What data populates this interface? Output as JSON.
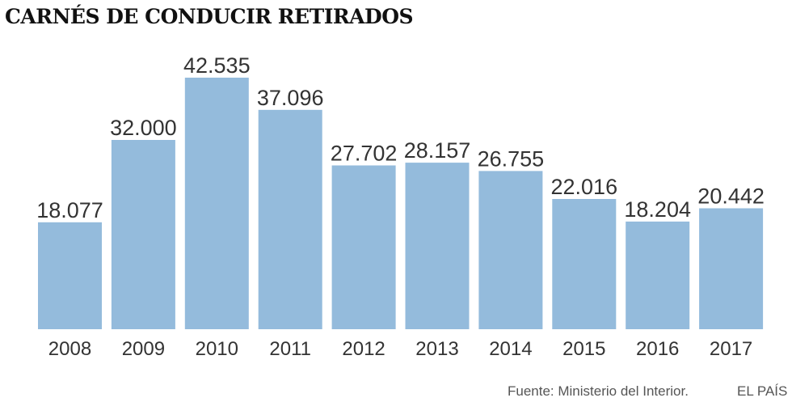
{
  "chart_data": {
    "type": "bar",
    "title": "CARNÉS DE CONDUCIR RETIRADOS",
    "categories": [
      "2008",
      "2009",
      "2010",
      "2011",
      "2012",
      "2013",
      "2014",
      "2015",
      "2016",
      "2017"
    ],
    "values": [
      18077,
      32000,
      42535,
      37096,
      27702,
      28157,
      26755,
      22016,
      18204,
      20442
    ],
    "value_labels": [
      "18.077",
      "32.000",
      "42.535",
      "37.096",
      "27.702",
      "28.157",
      "26.755",
      "22.016",
      "18.204",
      "20.442"
    ],
    "xlabel": "",
    "ylabel": "",
    "ylim": [
      0,
      42535
    ],
    "grid": false,
    "bar_color": "#94bbdc"
  },
  "footer": {
    "source": "Fuente: Ministerio del Interior.",
    "brand": "EL PAÍS"
  }
}
